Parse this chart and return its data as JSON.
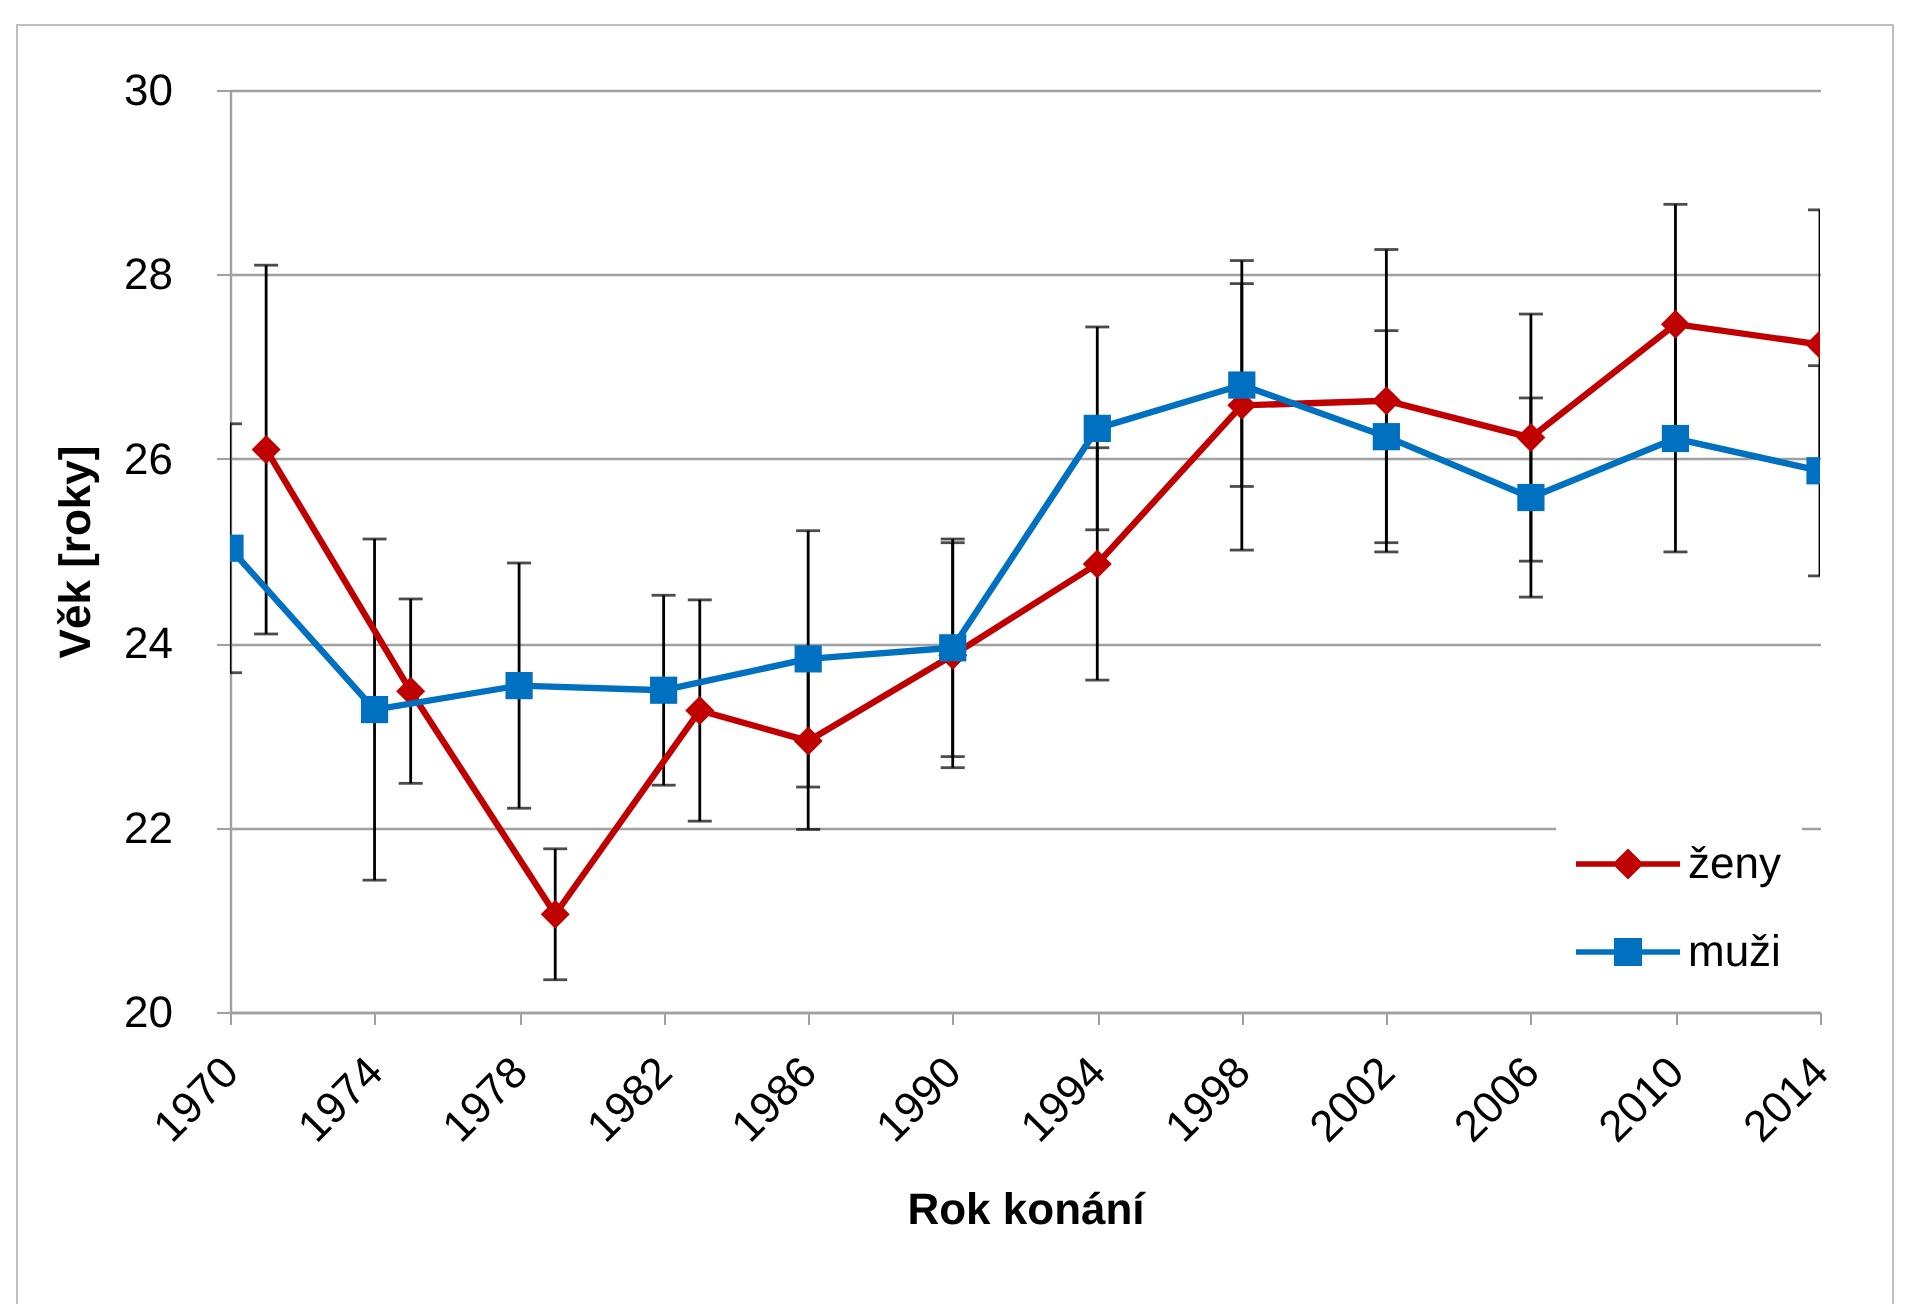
{
  "chart_data": {
    "type": "line",
    "xlabel": "Rok konání",
    "ylabel": "Věk [roky]",
    "xlim": [
      1970,
      2014
    ],
    "xticks": [
      1970,
      1974,
      1978,
      1982,
      1986,
      1990,
      1994,
      1998,
      2002,
      2006,
      2010,
      2014
    ],
    "ylim": [
      20,
      30
    ],
    "yticks": [
      20,
      22,
      24,
      26,
      28,
      30
    ],
    "grid": "y",
    "legend": "bottom right",
    "line_style": "solid",
    "series": [
      {
        "name": "ženy",
        "color": "#c00000",
        "marker": "diamond",
        "x": [
          1971,
          1975,
          1979,
          1983,
          1986,
          1990,
          1994,
          1998,
          2002,
          2006,
          2010,
          2014
        ],
        "values": [
          26.1,
          23.48,
          21.06,
          23.27,
          22.94,
          23.87,
          24.86,
          26.58,
          26.63,
          26.23,
          27.46,
          27.24
        ],
        "errors": [
          2.0,
          1.0,
          0.71,
          1.2,
          0.96,
          1.22,
          1.26,
          1.57,
          1.64,
          1.34,
          1.3,
          1.46
        ]
      },
      {
        "name": "muži",
        "color": "#0070c0",
        "marker": "square",
        "x": [
          1970,
          1974,
          1978,
          1982,
          1986,
          1990,
          1994,
          1998,
          2002,
          2006,
          2010,
          2014
        ],
        "values": [
          25.03,
          23.28,
          23.54,
          23.49,
          23.83,
          23.95,
          26.33,
          26.8,
          26.24,
          25.58,
          26.22,
          25.87
        ],
        "errors": [
          1.35,
          1.85,
          1.33,
          1.03,
          1.39,
          1.18,
          1.1,
          1.1,
          1.15,
          1.08,
          1.23,
          1.14
        ]
      }
    ]
  }
}
